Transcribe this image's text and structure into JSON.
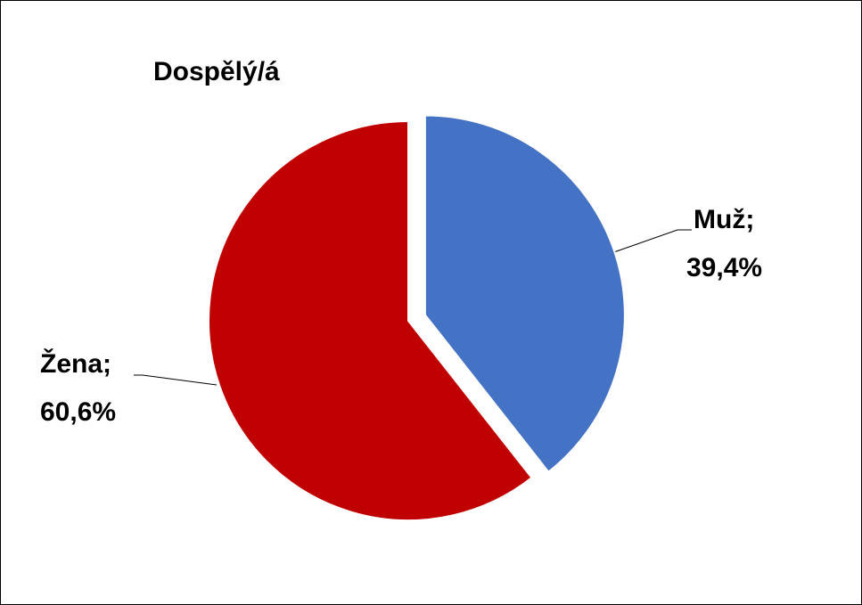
{
  "chart_data": {
    "type": "pie",
    "title": "Dospělý/á",
    "categories": [
      "Muž;",
      "Žena;"
    ],
    "values": [
      39.4,
      60.6
    ],
    "value_labels": [
      "39,4%",
      "60,6%"
    ],
    "colors": [
      "#4472c4",
      "#c00000"
    ]
  }
}
